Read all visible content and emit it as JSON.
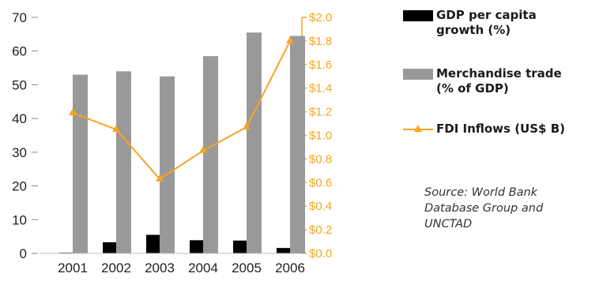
{
  "chart_data": {
    "type": "bar",
    "categories": [
      "2001",
      "2002",
      "2003",
      "2004",
      "2005",
      "2006"
    ],
    "series": [
      {
        "name": "GDP per capita growth (%)",
        "kind": "bar",
        "axis": "left",
        "values": [
          0.2,
          3.3,
          5.5,
          3.9,
          3.8,
          1.6
        ],
        "color": "#000000"
      },
      {
        "name": "Merchandise trade (% of GDP)",
        "kind": "bar",
        "axis": "left",
        "values": [
          53,
          54,
          52.5,
          58.5,
          65.5,
          64.5
        ],
        "color": "#999999"
      },
      {
        "name": "FDI Inflows (US$ B)",
        "kind": "line",
        "axis": "right",
        "values": [
          1.19,
          1.05,
          0.63,
          0.87,
          1.07,
          1.8
        ],
        "color": "#f5a623"
      }
    ],
    "y_left": {
      "lim": [
        0,
        70
      ],
      "ticks": [
        "0",
        "10",
        "20",
        "30",
        "40",
        "50",
        "60",
        "70"
      ]
    },
    "y_right": {
      "lim": [
        0,
        2.0
      ],
      "color": "#f5a623",
      "ticks": [
        "$0.0",
        "$0.2",
        "$0.4",
        "$0.6",
        "$0.8",
        "$1.0",
        "$1.2",
        "$1.4",
        "$1.6",
        "$1.8",
        "$2.0"
      ]
    },
    "grid": false,
    "legend_position": "right"
  },
  "legend": {
    "gdp_label": "GDP per capita\ngrowth (%)",
    "trade_label": "Merchandise trade\n(% of GDP)",
    "fdi_label": "FDI Inflows (US$ B)"
  },
  "source_text": "Source: World Bank\nDatabase Group and\nUNCTAD"
}
